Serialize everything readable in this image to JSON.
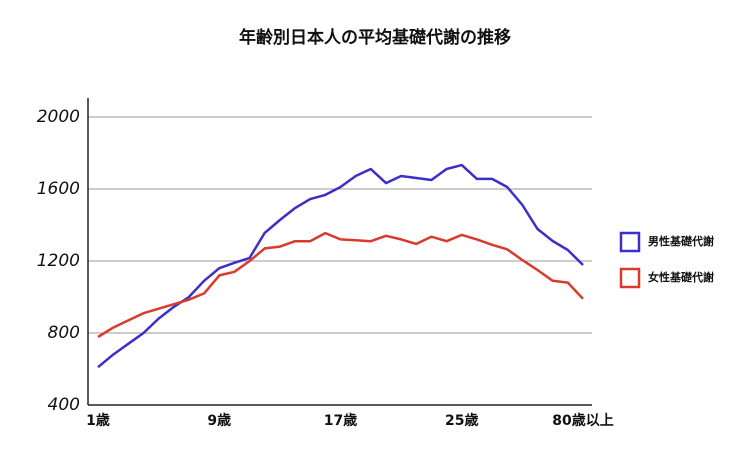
{
  "chart_data": {
    "type": "line",
    "title": "年齢別日本人の平均基礎代謝の推移",
    "categories": [
      "1歳",
      null,
      null,
      null,
      null,
      null,
      null,
      null,
      "9歳",
      null,
      null,
      null,
      null,
      null,
      null,
      null,
      "17歳",
      null,
      null,
      null,
      null,
      null,
      null,
      null,
      "25歳",
      null,
      null,
      null,
      null,
      null,
      null,
      null,
      "80歳以上"
    ],
    "series": [
      {
        "name": "男性基礎代謝",
        "color": "#3b2fc9",
        "values": [
          610,
          680,
          740,
          800,
          880,
          945,
          1000,
          1090,
          1160,
          1190,
          1217,
          1356,
          1428,
          1494,
          1544,
          1567,
          1611,
          1672,
          1711,
          1633,
          1672,
          1661,
          1650,
          1711,
          1733,
          1656,
          1656,
          1611,
          1511,
          1378,
          1311,
          1261,
          1178
        ]
      },
      {
        "name": "女性基礎代謝",
        "color": "#d93a2b",
        "values": [
          778,
          830,
          870,
          910,
          935,
          960,
          985,
          1020,
          1120,
          1140,
          1200,
          1270,
          1280,
          1310,
          1310,
          1355,
          1320,
          1315,
          1310,
          1340,
          1320,
          1295,
          1335,
          1310,
          1345,
          1320,
          1290,
          1265,
          1205,
          1150,
          1090,
          1080,
          990
        ]
      }
    ],
    "ylim": [
      400,
      2000
    ],
    "yticks": [
      400,
      800,
      1200,
      1600,
      2000
    ],
    "grid": true,
    "legend": "right"
  }
}
